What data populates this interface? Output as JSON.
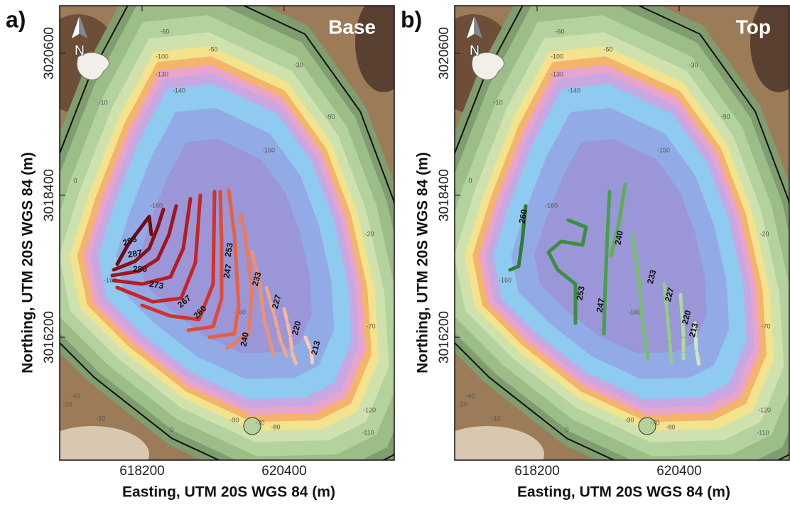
{
  "panels": [
    {
      "letter": "a)",
      "title": "Base",
      "xticks": [
        618200,
        620400
      ],
      "yticks": [
        3020600,
        3018400,
        3016200
      ],
      "xlabel": "Easting, UTM 20S WGS 84 (m)",
      "ylabel": "Northing, UTM 20S WGS 84 (m)",
      "contours": [
        {
          "label": 293,
          "color": "#6e0b12"
        },
        {
          "label": 287,
          "color": "#8a1018"
        },
        {
          "label": 280,
          "color": "#a3141c"
        },
        {
          "label": 273,
          "color": "#b81a20"
        },
        {
          "label": 267,
          "color": "#c82424"
        },
        {
          "label": 260,
          "color": "#d6302a"
        },
        {
          "label": 253,
          "color": "#e04a35"
        },
        {
          "label": 247,
          "color": "#e8603f"
        },
        {
          "label": 240,
          "color": "#ef7a55"
        },
        {
          "label": 233,
          "color": "#f29070"
        },
        {
          "label": 227,
          "color": "#f4a588"
        },
        {
          "label": 220,
          "color": "#f6b89e"
        },
        {
          "label": 213,
          "color": "#f8cdb8"
        }
      ]
    },
    {
      "letter": "b)",
      "title": "Top",
      "xticks": [
        618200,
        620400
      ],
      "yticks": [
        3020600,
        3018400,
        3016200
      ],
      "xlabel": "Easting, UTM 20S WGS 84 (m)",
      "ylabel": "Northing, UTM 20S WGS 84 (m)",
      "contours": [
        {
          "label": 260,
          "color": "#2f7d32"
        },
        {
          "label": 253,
          "color": "#3a8f3c"
        },
        {
          "label": 247,
          "color": "#47a047"
        },
        {
          "label": 240,
          "color": "#5caf52"
        },
        {
          "label": 233,
          "color": "#78be68"
        },
        {
          "label": 227,
          "color": "#94cc80"
        },
        {
          "label": 220,
          "color": "#b0d99c"
        },
        {
          "label": 213,
          "color": "#cfe8c0"
        }
      ]
    }
  ],
  "north_label": "N",
  "depth_labels": [
    "-60",
    "-50",
    "-30",
    "-100",
    "-130",
    "-140",
    "-150",
    "-90",
    "-10",
    "-160",
    "-160",
    "-160",
    "-20",
    "-70",
    "-120",
    "-110",
    "0",
    "-40",
    "-20",
    "-10",
    "0",
    "-90",
    "-70",
    "-80"
  ]
}
